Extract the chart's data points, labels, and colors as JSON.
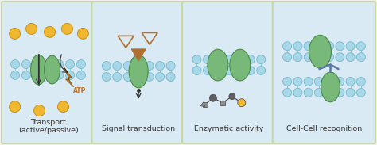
{
  "fig_bg": "#eeeeee",
  "panel_bg": "#daeaf5",
  "panel_border": "#c8d8a0",
  "panel_labels": [
    "Transport\n(active/passive)",
    "Signal transduction",
    "Enzymatic activity",
    "Cell-Cell recognition"
  ],
  "mem_head_color": "#a8d8e8",
  "mem_head_edge": "#70b8d0",
  "mem_tail_color": "#c8e8f0",
  "protein_color": "#78b878",
  "protein_edge": "#4a8a4a",
  "gold_color": "#f0b830",
  "gold_edge": "#c89010",
  "arrow_color": "#303030",
  "atp_color": "#c07020",
  "signal_tri_color": "#b07030",
  "antibody_color": "#5878a8",
  "label_fontsize": 6.8,
  "label_color": "#333333"
}
